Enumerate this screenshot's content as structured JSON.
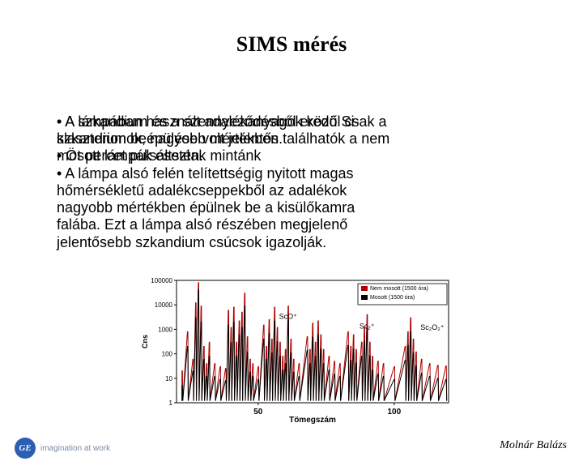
{
  "title": "SIMS mérés",
  "bullets_block_a": {
    "l1": "•  A szkandium és a szennyeződésből eredő Si-",
    "l2": "    klaszterionok, nagyobb mértékben találhatók a nem",
    "l3": "    mosott lámpák esetén.",
    "l4": "•  A lámpa alsó felén telítettségig nyitott magas",
    "l5": "    hőmérsékletű adalékcseppekből az adalékok",
    "l6": "    nagyobb mértékben épülnek be a kisülőkamra",
    "l7": "    falába. Ezt a lámpa alsó részében megjelenő",
    "l8": "    jelentősebb szkandium csúcsok igazolják."
  },
  "bullets_block_b": {
    "l1": "•  A lámpában használt adalékanyagok közül csak a",
    "l2": "    szkandium beépülése volt jelentős.",
    "l3": " ",
    "l4": "•  Öt percet pulsáltsztak mintánk"
  },
  "chart": {
    "type": "line",
    "ylabel": "Cns",
    "xlabel": "Tömegszám",
    "xlim": [
      20,
      120
    ],
    "xticks": [
      50,
      100
    ],
    "ylim_log": [
      1,
      100000
    ],
    "yticks": [
      1,
      10,
      100,
      1000,
      10000,
      100000
    ],
    "ytick_labels": [
      "1",
      "10",
      "100",
      "1000",
      "10000",
      "100000"
    ],
    "background": "#ffffff",
    "axis_color": "#000000",
    "legend": {
      "items": [
        {
          "label": "Nem mosott (1500 óra)",
          "color": "#b00000"
        },
        {
          "label": "Mosott (1500 óra)",
          "color": "#000000"
        }
      ],
      "border": "#000000"
    },
    "peak_labels": [
      {
        "text": "ScO⁺",
        "x": 61,
        "y_log": 2000
      },
      {
        "text": "Sc₂⁺",
        "x": 90,
        "y_log": 800
      },
      {
        "text": "Sc₂O₂⁺",
        "x": 114,
        "y_log": 700
      }
    ],
    "series": [
      {
        "color": "#b00000",
        "width": 1,
        "points": [
          [
            22,
            20
          ],
          [
            24,
            800
          ],
          [
            26,
            60
          ],
          [
            27,
            12000
          ],
          [
            28,
            80000
          ],
          [
            29,
            9000
          ],
          [
            30,
            200
          ],
          [
            31,
            40
          ],
          [
            32,
            300
          ],
          [
            34,
            40
          ],
          [
            36,
            30
          ],
          [
            38,
            25
          ],
          [
            39,
            6000
          ],
          [
            40,
            1200
          ],
          [
            41,
            8000
          ],
          [
            42,
            300
          ],
          [
            43,
            2200
          ],
          [
            44,
            5000
          ],
          [
            45,
            30000
          ],
          [
            46,
            500
          ],
          [
            47,
            60
          ],
          [
            48,
            40
          ],
          [
            50,
            30
          ],
          [
            52,
            1500
          ],
          [
            53,
            200
          ],
          [
            54,
            2500
          ],
          [
            55,
            400
          ],
          [
            56,
            8000
          ],
          [
            57,
            1200
          ],
          [
            58,
            300
          ],
          [
            59,
            80
          ],
          [
            60,
            150
          ],
          [
            61,
            9000
          ],
          [
            62,
            400
          ],
          [
            63,
            60
          ],
          [
            65,
            40
          ],
          [
            68,
            500
          ],
          [
            69,
            150
          ],
          [
            70,
            1800
          ],
          [
            71,
            300
          ],
          [
            72,
            2200
          ],
          [
            73,
            600
          ],
          [
            74,
            150
          ],
          [
            76,
            80
          ],
          [
            78,
            50
          ],
          [
            80,
            40
          ],
          [
            83,
            800
          ],
          [
            84,
            200
          ],
          [
            85,
            600
          ],
          [
            86,
            150
          ],
          [
            88,
            300
          ],
          [
            89,
            1200
          ],
          [
            90,
            4000
          ],
          [
            91,
            300
          ],
          [
            92,
            80
          ],
          [
            94,
            50
          ],
          [
            96,
            40
          ],
          [
            100,
            30
          ],
          [
            104,
            200
          ],
          [
            105,
            800
          ],
          [
            106,
            3000
          ],
          [
            107,
            400
          ],
          [
            108,
            120
          ],
          [
            110,
            60
          ],
          [
            113,
            40
          ],
          [
            116,
            34
          ],
          [
            119,
            32
          ]
        ]
      },
      {
        "color": "#000000",
        "width": 1,
        "points": [
          [
            22,
            5
          ],
          [
            24,
            200
          ],
          [
            26,
            20
          ],
          [
            27,
            3000
          ],
          [
            28,
            40000
          ],
          [
            29,
            2000
          ],
          [
            30,
            60
          ],
          [
            31,
            12
          ],
          [
            32,
            80
          ],
          [
            34,
            12
          ],
          [
            36,
            9
          ],
          [
            38,
            8
          ],
          [
            39,
            1500
          ],
          [
            40,
            300
          ],
          [
            41,
            2000
          ],
          [
            42,
            80
          ],
          [
            43,
            600
          ],
          [
            44,
            1200
          ],
          [
            45,
            9000
          ],
          [
            46,
            120
          ],
          [
            47,
            18
          ],
          [
            48,
            12
          ],
          [
            50,
            9
          ],
          [
            52,
            400
          ],
          [
            53,
            60
          ],
          [
            54,
            700
          ],
          [
            55,
            110
          ],
          [
            56,
            2200
          ],
          [
            57,
            320
          ],
          [
            58,
            80
          ],
          [
            59,
            22
          ],
          [
            60,
            40
          ],
          [
            61,
            2400
          ],
          [
            62,
            110
          ],
          [
            63,
            18
          ],
          [
            65,
            12
          ],
          [
            68,
            140
          ],
          [
            69,
            40
          ],
          [
            70,
            480
          ],
          [
            71,
            80
          ],
          [
            72,
            600
          ],
          [
            73,
            160
          ],
          [
            74,
            40
          ],
          [
            76,
            22
          ],
          [
            78,
            15
          ],
          [
            80,
            12
          ],
          [
            83,
            220
          ],
          [
            84,
            55
          ],
          [
            85,
            160
          ],
          [
            86,
            42
          ],
          [
            88,
            80
          ],
          [
            89,
            320
          ],
          [
            90,
            1100
          ],
          [
            91,
            85
          ],
          [
            92,
            22
          ],
          [
            94,
            15
          ],
          [
            96,
            12
          ],
          [
            100,
            9
          ],
          [
            104,
            55
          ],
          [
            105,
            220
          ],
          [
            106,
            800
          ],
          [
            107,
            110
          ],
          [
            108,
            32
          ],
          [
            110,
            16
          ],
          [
            113,
            12
          ],
          [
            116,
            10
          ],
          [
            119,
            9
          ]
        ]
      }
    ]
  },
  "footer": {
    "tagline": "imagination at work",
    "author": "Molnár Balázs",
    "logo_text": "GE"
  }
}
